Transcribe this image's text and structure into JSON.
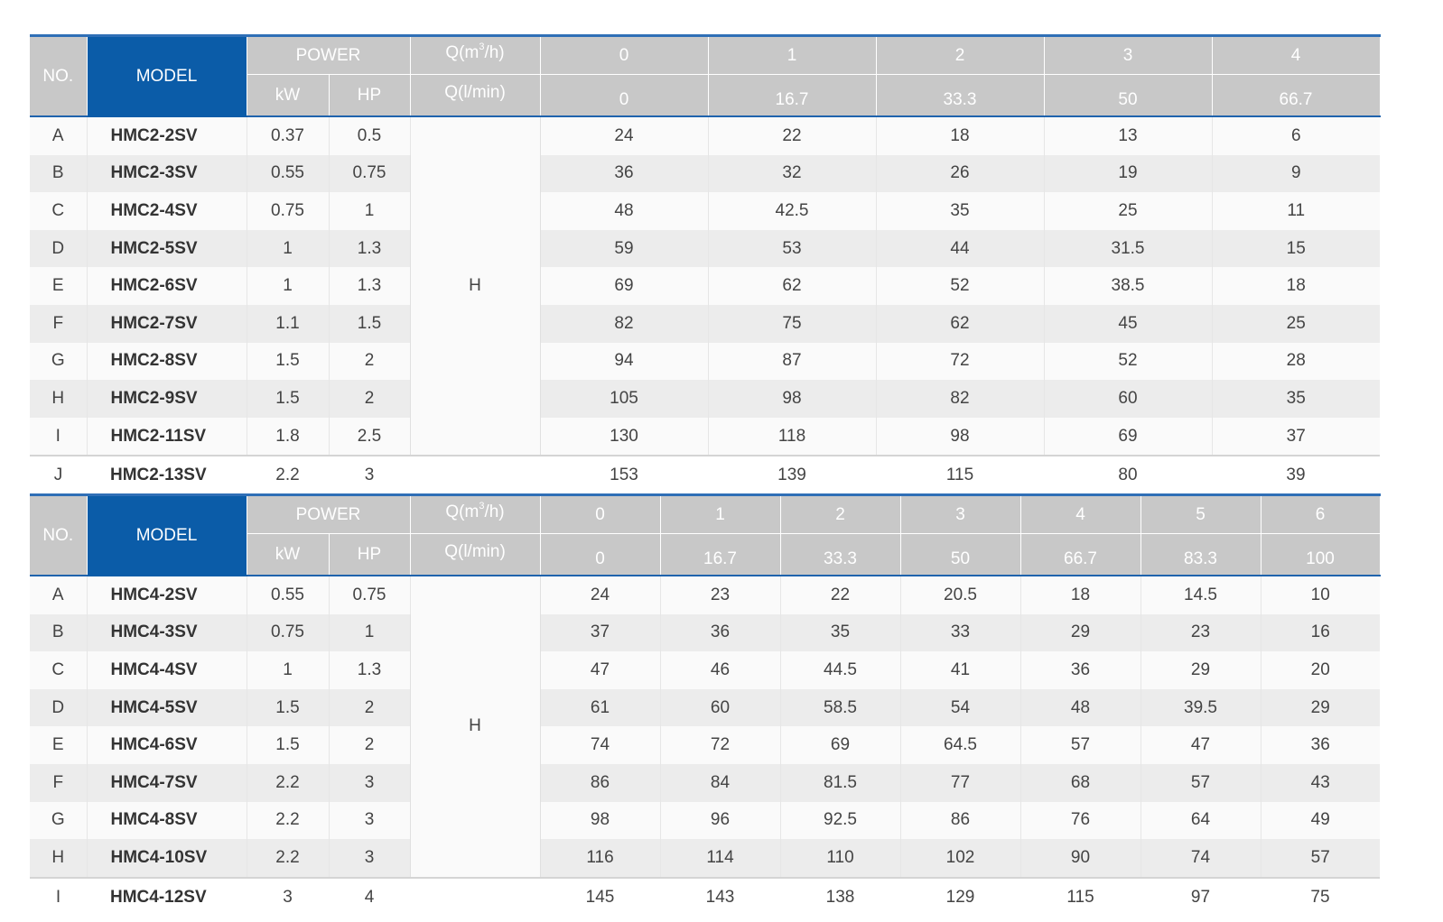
{
  "headers": {
    "no": "NO.",
    "model": "MODEL",
    "power": "POWER",
    "kw": "kW",
    "hp": "HP",
    "q_m3h_prefix": "Q(m",
    "q_m3h_sup": "3",
    "q_m3h_suffix": "/h)",
    "q_lmin": "Q(l/min)",
    "h_label": "H"
  },
  "table1": {
    "flow_m3h": [
      "0",
      "1",
      "2",
      "3",
      "4"
    ],
    "flow_lmin": [
      "0",
      "16.7",
      "33.3",
      "50",
      "66.7"
    ],
    "rows": [
      {
        "no": "A",
        "model": "HMC2-2SV",
        "kw": "0.37",
        "hp": "0.5",
        "heads": [
          "24",
          "22",
          "18",
          "13",
          "6"
        ]
      },
      {
        "no": "B",
        "model": "HMC2-3SV",
        "kw": "0.55",
        "hp": "0.75",
        "heads": [
          "36",
          "32",
          "26",
          "19",
          "9"
        ]
      },
      {
        "no": "C",
        "model": "HMC2-4SV",
        "kw": "0.75",
        "hp": "1",
        "heads": [
          "48",
          "42.5",
          "35",
          "25",
          "11"
        ]
      },
      {
        "no": "D",
        "model": "HMC2-5SV",
        "kw": "1",
        "hp": "1.3",
        "heads": [
          "59",
          "53",
          "44",
          "31.5",
          "15"
        ]
      },
      {
        "no": "E",
        "model": "HMC2-6SV",
        "kw": "1",
        "hp": "1.3",
        "heads": [
          "69",
          "62",
          "52",
          "38.5",
          "18"
        ]
      },
      {
        "no": "F",
        "model": "HMC2-7SV",
        "kw": "1.1",
        "hp": "1.5",
        "heads": [
          "82",
          "75",
          "62",
          "45",
          "25"
        ]
      },
      {
        "no": "G",
        "model": "HMC2-8SV",
        "kw": "1.5",
        "hp": "2",
        "heads": [
          "94",
          "87",
          "72",
          "52",
          "28"
        ]
      },
      {
        "no": "H",
        "model": "HMC2-9SV",
        "kw": "1.5",
        "hp": "2",
        "heads": [
          "105",
          "98",
          "82",
          "60",
          "35"
        ]
      },
      {
        "no": "I",
        "model": "HMC2-11SV",
        "kw": "1.8",
        "hp": "2.5",
        "heads": [
          "130",
          "118",
          "98",
          "69",
          "37"
        ]
      },
      {
        "no": "J",
        "model": "HMC2-13SV",
        "kw": "2.2",
        "hp": "3",
        "heads": [
          "153",
          "139",
          "115",
          "80",
          "39"
        ]
      }
    ]
  },
  "table2": {
    "flow_m3h": [
      "0",
      "1",
      "2",
      "3",
      "4",
      "5",
      "6"
    ],
    "flow_lmin": [
      "0",
      "16.7",
      "33.3",
      "50",
      "66.7",
      "83.3",
      "100"
    ],
    "rows": [
      {
        "no": "A",
        "model": "HMC4-2SV",
        "kw": "0.55",
        "hp": "0.75",
        "heads": [
          "24",
          "23",
          "22",
          "20.5",
          "18",
          "14.5",
          "10"
        ]
      },
      {
        "no": "B",
        "model": "HMC4-3SV",
        "kw": "0.75",
        "hp": "1",
        "heads": [
          "37",
          "36",
          "35",
          "33",
          "29",
          "23",
          "16"
        ]
      },
      {
        "no": "C",
        "model": "HMC4-4SV",
        "kw": "1",
        "hp": "1.3",
        "heads": [
          "47",
          "46",
          "44.5",
          "41",
          "36",
          "29",
          "20"
        ]
      },
      {
        "no": "D",
        "model": "HMC4-5SV",
        "kw": "1.5",
        "hp": "2",
        "heads": [
          "61",
          "60",
          "58.5",
          "54",
          "48",
          "39.5",
          "29"
        ]
      },
      {
        "no": "E",
        "model": "HMC4-6SV",
        "kw": "1.5",
        "hp": "2",
        "heads": [
          "74",
          "72",
          "69",
          "64.5",
          "57",
          "47",
          "36"
        ]
      },
      {
        "no": "F",
        "model": "HMC4-7SV",
        "kw": "2.2",
        "hp": "3",
        "heads": [
          "86",
          "84",
          "81.5",
          "77",
          "68",
          "57",
          "43"
        ]
      },
      {
        "no": "G",
        "model": "HMC4-8SV",
        "kw": "2.2",
        "hp": "3",
        "heads": [
          "98",
          "96",
          "92.5",
          "86",
          "76",
          "64",
          "49"
        ]
      },
      {
        "no": "H",
        "model": "HMC4-10SV",
        "kw": "2.2",
        "hp": "3",
        "heads": [
          "116",
          "114",
          "110",
          "102",
          "90",
          "74",
          "57"
        ]
      },
      {
        "no": "I",
        "model": "HMC4-12SV",
        "kw": "3",
        "hp": "4",
        "heads": [
          "145",
          "143",
          "138",
          "129",
          "115",
          "97",
          "75"
        ]
      }
    ]
  }
}
